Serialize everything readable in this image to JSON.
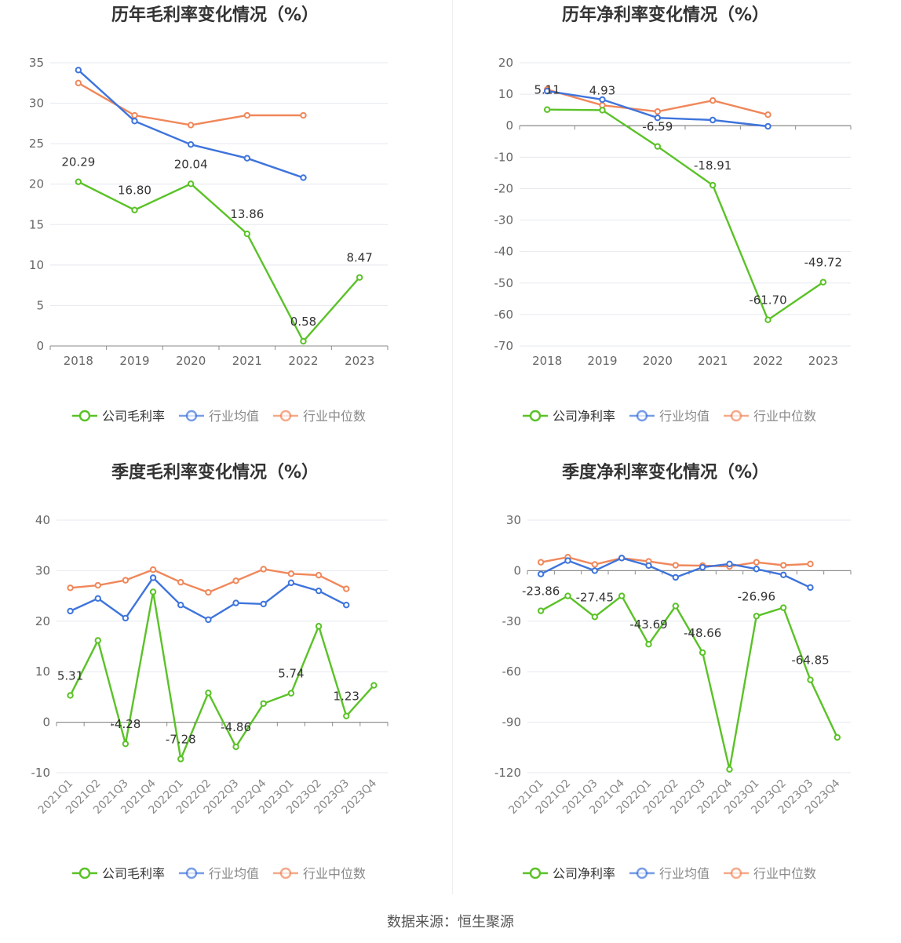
{
  "colors": {
    "company": "#5ac227",
    "industry_avg": "#3e74dc",
    "industry_median": "#f0875a"
  },
  "source": "数据来源：恒生聚源",
  "chart_data": [
    {
      "type": "line",
      "title": "历年毛利率变化情况（%）",
      "categories": [
        "2018",
        "2019",
        "2020",
        "2021",
        "2022",
        "2023"
      ],
      "ylim": [
        0,
        35
      ],
      "yticks": [
        0,
        5,
        10,
        15,
        20,
        25,
        30,
        35
      ],
      "grid": true,
      "legend": "bottom",
      "series": [
        {
          "name": "公司毛利率",
          "values": [
            20.29,
            16.8,
            20.04,
            13.86,
            0.58,
            8.47
          ],
          "labels": [
            "20.29",
            "16.80",
            "20.04",
            "13.86",
            "0.58",
            "8.47"
          ]
        },
        {
          "name": "行业均值",
          "values": [
            34.1,
            27.8,
            24.9,
            23.2,
            20.8,
            null
          ]
        },
        {
          "name": "行业中位数",
          "values": [
            32.5,
            28.5,
            27.3,
            28.5,
            28.5,
            null
          ]
        }
      ]
    },
    {
      "type": "line",
      "title": "历年净利率变化情况（%）",
      "categories": [
        "2018",
        "2019",
        "2020",
        "2021",
        "2022",
        "2023"
      ],
      "ylim": [
        -70,
        20
      ],
      "yticks": [
        -70,
        -60,
        -50,
        -40,
        -30,
        -20,
        -10,
        0,
        10,
        20
      ],
      "grid": true,
      "legend": "bottom",
      "series": [
        {
          "name": "公司净利率",
          "values": [
            5.11,
            4.93,
            -6.59,
            -18.91,
            -61.7,
            -49.72
          ],
          "labels": [
            "5.11",
            "4.93",
            "-6.59",
            "-18.91",
            "-61.70",
            "-49.72"
          ]
        },
        {
          "name": "行业均值",
          "values": [
            11.0,
            8.3,
            2.5,
            1.8,
            -0.2,
            null
          ]
        },
        {
          "name": "行业中位数",
          "values": [
            11.5,
            6.5,
            4.5,
            8.0,
            3.5,
            null
          ]
        }
      ]
    },
    {
      "type": "line",
      "title": "季度毛利率变化情况（%）",
      "categories": [
        "2021Q1",
        "2021Q2",
        "2021Q3",
        "2021Q4",
        "2022Q1",
        "2022Q2",
        "2022Q3",
        "2022Q4",
        "2023Q1",
        "2023Q2",
        "2023Q3",
        "2023Q4"
      ],
      "ylim": [
        -10,
        40
      ],
      "yticks": [
        -10,
        0,
        10,
        20,
        30,
        40
      ],
      "grid": true,
      "legend": "bottom",
      "series": [
        {
          "name": "公司毛利率",
          "values": [
            5.31,
            16.2,
            -4.28,
            25.8,
            -7.28,
            5.8,
            -4.86,
            3.7,
            5.74,
            19.0,
            1.23,
            7.3
          ],
          "labels": [
            "5.31",
            null,
            "-4.28",
            null,
            "-7.28",
            null,
            "-4.86",
            null,
            "5.74",
            null,
            "1.23",
            null
          ]
        },
        {
          "name": "行业均值",
          "values": [
            22.0,
            24.5,
            20.6,
            28.6,
            23.2,
            20.3,
            23.6,
            23.4,
            27.6,
            26.0,
            23.2,
            null
          ]
        },
        {
          "name": "行业中位数",
          "values": [
            26.6,
            27.1,
            28.1,
            30.2,
            27.7,
            25.7,
            28.0,
            30.3,
            29.4,
            29.1,
            26.4,
            null
          ]
        }
      ]
    },
    {
      "type": "line",
      "title": "季度净利率变化情况（%）",
      "categories": [
        "2021Q1",
        "2021Q2",
        "2021Q3",
        "2021Q4",
        "2022Q1",
        "2022Q2",
        "2022Q3",
        "2022Q4",
        "2023Q1",
        "2023Q2",
        "2023Q3",
        "2023Q4"
      ],
      "ylim": [
        -120,
        30
      ],
      "yticks": [
        -120,
        -90,
        -60,
        -30,
        0,
        30
      ],
      "grid": true,
      "legend": "bottom",
      "series": [
        {
          "name": "公司净利率",
          "values": [
            -23.86,
            -15.0,
            -27.45,
            -15.0,
            -43.69,
            -21.0,
            -48.66,
            -118.0,
            -26.96,
            -22.0,
            -64.85,
            -99.0
          ],
          "labels": [
            "-23.86",
            null,
            "-27.45",
            null,
            "-43.69",
            null,
            "-48.66",
            null,
            "-26.96",
            null,
            "-64.85",
            null
          ]
        },
        {
          "name": "行业均值",
          "values": [
            -2.0,
            6.0,
            0.0,
            7.5,
            3.0,
            -4.0,
            2.0,
            4.0,
            1.0,
            -2.5,
            -10.0,
            null
          ]
        },
        {
          "name": "行业中位数",
          "values": [
            5.0,
            8.0,
            3.7,
            7.5,
            5.5,
            3.2,
            3.0,
            2.5,
            5.0,
            3.2,
            4.0,
            null
          ]
        }
      ]
    }
  ]
}
